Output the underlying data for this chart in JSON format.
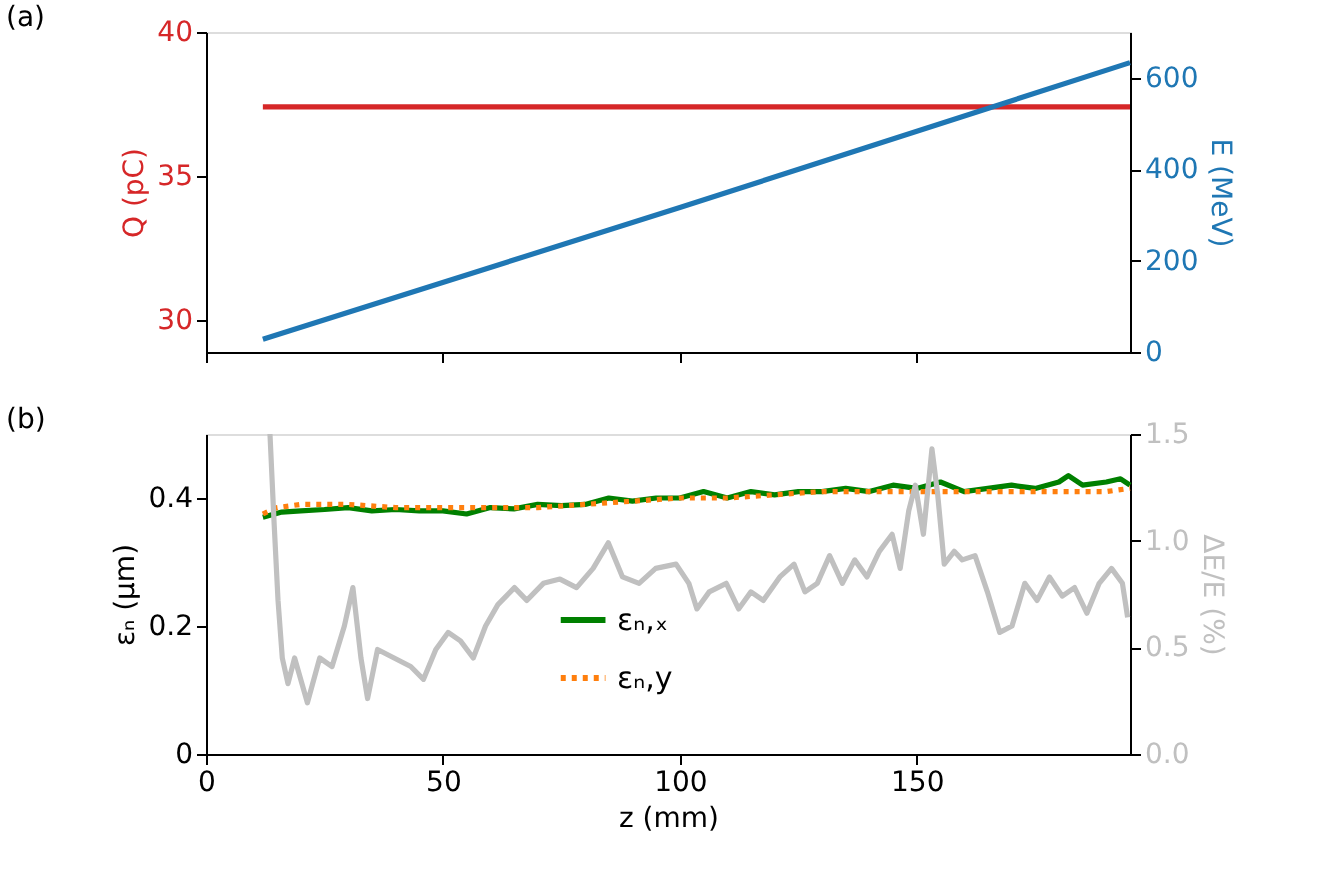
{
  "chart_data": [
    {
      "type": "line",
      "annotations": [
        "(a)"
      ],
      "ylabel": "Q (pC)",
      "y2label": "E (MeV)",
      "xlim": [
        0,
        195
      ],
      "xticks": [
        0,
        50,
        100,
        150
      ],
      "ylim": [
        28.9,
        40
      ],
      "yticks": [
        30,
        35,
        40
      ],
      "y2lim": [
        0,
        700
      ],
      "y2ticks": [
        0,
        200,
        400,
        600
      ],
      "tick_labels": "y",
      "grid": false,
      "legend": false,
      "series": [
        {
          "color": "#d62728",
          "line_style": "solid",
          "x": [
            12,
            195
          ],
          "values": [
            37.4,
            37.4
          ]
        },
        {
          "color": "#1f77b4",
          "line_style": "solid",
          "axis": "y2",
          "x": [
            12,
            100,
            195
          ],
          "values": [
            28,
            316,
            633
          ]
        }
      ]
    },
    {
      "type": "line",
      "annotations": [
        "(b)"
      ],
      "xlabel": "z (mm)",
      "ylabel": "εₙ (μm)",
      "y2label": "ΔE/E (%)",
      "xlim": [
        0,
        195
      ],
      "xticks": [
        0,
        50,
        100,
        150
      ],
      "ylim": [
        0,
        0.5
      ],
      "yticks": [
        0,
        0.2,
        0.4
      ],
      "y2lim": [
        0,
        1.5
      ],
      "y2ticks": [
        {
          "value": 0,
          "label": "0.0"
        },
        0.5,
        {
          "value": 1,
          "label": "1.0"
        },
        1.5
      ],
      "grid": false,
      "legend": "bottom",
      "series": [
        {
          "name": "εₙ,ₓ",
          "color": "#008000",
          "line_style": "solid",
          "x": [
            12,
            16,
            20,
            25,
            30,
            35,
            40,
            45,
            50,
            55,
            60,
            65,
            70,
            75,
            80,
            85,
            90,
            95,
            100,
            105,
            110,
            115,
            120,
            125,
            130,
            135,
            140,
            145,
            150,
            155,
            160,
            165,
            170,
            175,
            180,
            182,
            185,
            190,
            193,
            195
          ],
          "values": [
            0.37,
            0.378,
            0.38,
            0.382,
            0.385,
            0.38,
            0.382,
            0.38,
            0.38,
            0.375,
            0.385,
            0.383,
            0.39,
            0.388,
            0.39,
            0.4,
            0.395,
            0.4,
            0.4,
            0.41,
            0.4,
            0.41,
            0.405,
            0.41,
            0.41,
            0.415,
            0.41,
            0.42,
            0.415,
            0.425,
            0.41,
            0.415,
            0.42,
            0.415,
            0.425,
            0.435,
            0.42,
            0.425,
            0.43,
            0.42
          ]
        },
        {
          "name": "εₙ,y",
          "color": "#ff7f0e",
          "line_style": "dotted",
          "x": [
            12,
            15,
            20,
            30,
            40,
            50,
            60,
            70,
            80,
            90,
            100,
            110,
            120,
            130,
            140,
            150,
            160,
            170,
            180,
            190,
            195
          ],
          "values": [
            0.375,
            0.385,
            0.39,
            0.39,
            0.385,
            0.385,
            0.385,
            0.385,
            0.39,
            0.395,
            0.4,
            0.4,
            0.405,
            0.41,
            0.41,
            0.41,
            0.41,
            0.41,
            0.41,
            0.41,
            0.415
          ]
        },
        {
          "color": "#c0c0c0",
          "line_style": "solid",
          "axis": "y2",
          "x": [
            13.5,
            14.4,
            15.2,
            16.1,
            17.3,
            18.7,
            21.4,
            24,
            26.6,
            29.2,
            31,
            32.7,
            34.1,
            36.2,
            39.7,
            43.2,
            45.9,
            48.5,
            51.1,
            53.7,
            56.4,
            59,
            61.6,
            65.1,
            67.7,
            71.2,
            74.7,
            78.2,
            81.7,
            84.9,
            87.9,
            91.4,
            94.9,
            99.2,
            101.9,
            103.6,
            106.2,
            109.8,
            112.4,
            115,
            117.6,
            121.1,
            124.1,
            126.4,
            129,
            131.6,
            134.3,
            136.9,
            139.5,
            142.1,
            144.8,
            146.5,
            148.3,
            149.7,
            151.4,
            153.2,
            154.4,
            155.8,
            157.9,
            159.6,
            162.3,
            164.9,
            167.5,
            170.1,
            172.8,
            175.4,
            178,
            180.7,
            183.3,
            185.9,
            188.5,
            191.1,
            193.4,
            194.5
          ],
          "values": [
            1.5,
            1.07,
            0.72,
            0.45,
            0.33,
            0.45,
            0.24,
            0.45,
            0.41,
            0.6,
            0.78,
            0.45,
            0.26,
            0.49,
            0.45,
            0.41,
            0.35,
            0.49,
            0.57,
            0.53,
            0.45,
            0.6,
            0.7,
            0.78,
            0.72,
            0.8,
            0.82,
            0.78,
            0.87,
            0.99,
            0.83,
            0.8,
            0.87,
            0.89,
            0.8,
            0.68,
            0.76,
            0.8,
            0.68,
            0.76,
            0.72,
            0.83,
            0.89,
            0.76,
            0.8,
            0.93,
            0.8,
            0.91,
            0.83,
            0.95,
            1.03,
            0.87,
            1.14,
            1.26,
            1.03,
            1.43,
            1.22,
            0.89,
            0.95,
            0.91,
            0.93,
            0.76,
            0.57,
            0.6,
            0.8,
            0.72,
            0.83,
            0.74,
            0.78,
            0.66,
            0.8,
            0.87,
            0.8,
            0.64
          ]
        }
      ]
    }
  ]
}
